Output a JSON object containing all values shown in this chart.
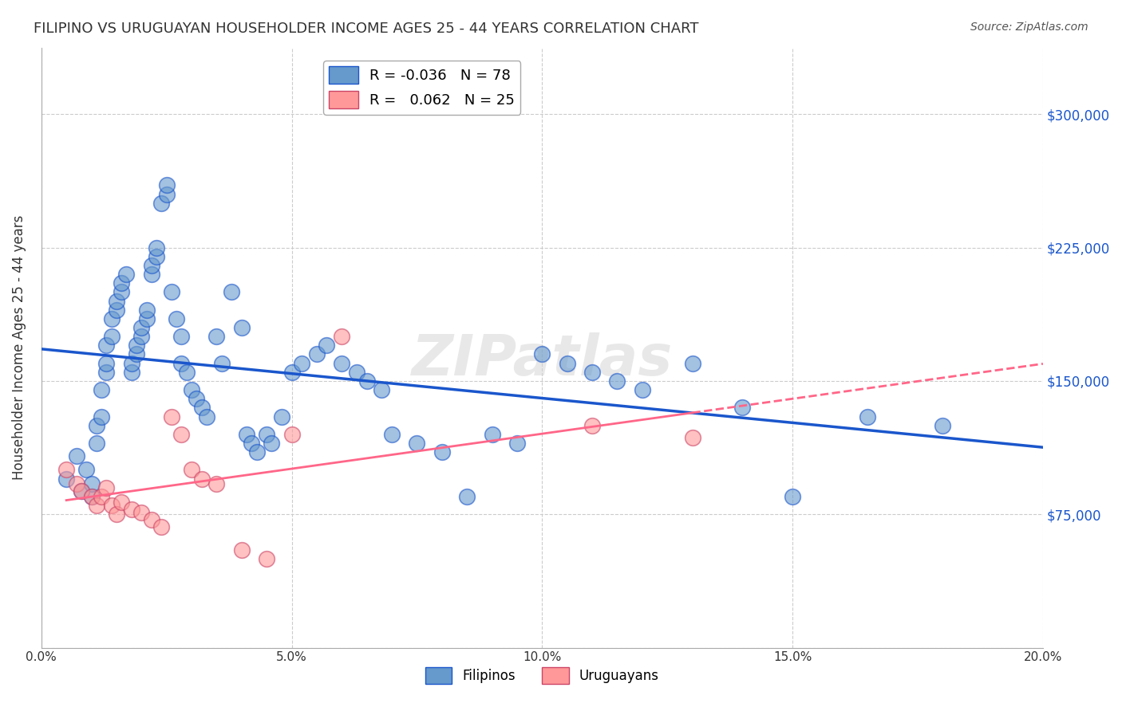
{
  "title": "FILIPINO VS URUGUAYAN HOUSEHOLDER INCOME AGES 25 - 44 YEARS CORRELATION CHART",
  "source": "Source: ZipAtlas.com",
  "xlabel": "",
  "ylabel": "Householder Income Ages 25 - 44 years",
  "xlim": [
    0.0,
    0.2
  ],
  "ylim": [
    0,
    337500
  ],
  "yticks": [
    0,
    75000,
    150000,
    225000,
    300000
  ],
  "background_color": "#ffffff",
  "watermark": "ZIPatlas",
  "filipino_color": "#6699cc",
  "uruguayan_color": "#ff9999",
  "trend_filipino_color": "#1a56cc",
  "trend_uruguayan_color": "#ff6688",
  "trend_uruguayan_edge": "#cc4466",
  "legend_R_filipino": "-0.036",
  "legend_N_filipino": "78",
  "legend_R_uruguayan": "0.062",
  "legend_N_uruguayan": "25",
  "filipino_x": [
    0.005,
    0.007,
    0.008,
    0.009,
    0.01,
    0.01,
    0.011,
    0.011,
    0.012,
    0.012,
    0.013,
    0.013,
    0.013,
    0.014,
    0.014,
    0.015,
    0.015,
    0.016,
    0.016,
    0.017,
    0.018,
    0.018,
    0.019,
    0.019,
    0.02,
    0.02,
    0.021,
    0.021,
    0.022,
    0.022,
    0.023,
    0.023,
    0.024,
    0.025,
    0.025,
    0.026,
    0.027,
    0.028,
    0.028,
    0.029,
    0.03,
    0.031,
    0.032,
    0.033,
    0.035,
    0.036,
    0.038,
    0.04,
    0.041,
    0.042,
    0.043,
    0.045,
    0.046,
    0.048,
    0.05,
    0.052,
    0.055,
    0.057,
    0.06,
    0.063,
    0.065,
    0.068,
    0.07,
    0.075,
    0.08,
    0.085,
    0.09,
    0.095,
    0.1,
    0.105,
    0.11,
    0.115,
    0.12,
    0.13,
    0.14,
    0.15,
    0.165,
    0.18
  ],
  "filipino_y": [
    95000,
    108000,
    88000,
    100000,
    85000,
    92000,
    115000,
    125000,
    130000,
    145000,
    155000,
    160000,
    170000,
    175000,
    185000,
    190000,
    195000,
    200000,
    205000,
    210000,
    155000,
    160000,
    165000,
    170000,
    175000,
    180000,
    185000,
    190000,
    210000,
    215000,
    220000,
    225000,
    250000,
    255000,
    260000,
    200000,
    185000,
    175000,
    160000,
    155000,
    145000,
    140000,
    135000,
    130000,
    175000,
    160000,
    200000,
    180000,
    120000,
    115000,
    110000,
    120000,
    115000,
    130000,
    155000,
    160000,
    165000,
    170000,
    160000,
    155000,
    150000,
    145000,
    120000,
    115000,
    110000,
    85000,
    120000,
    115000,
    165000,
    160000,
    155000,
    150000,
    145000,
    160000,
    135000,
    85000,
    130000,
    125000
  ],
  "uruguayan_x": [
    0.005,
    0.007,
    0.008,
    0.01,
    0.011,
    0.012,
    0.013,
    0.014,
    0.015,
    0.016,
    0.018,
    0.02,
    0.022,
    0.024,
    0.026,
    0.028,
    0.03,
    0.032,
    0.035,
    0.04,
    0.045,
    0.05,
    0.06,
    0.11,
    0.13
  ],
  "uruguayan_y": [
    100000,
    92000,
    88000,
    85000,
    80000,
    85000,
    90000,
    80000,
    75000,
    82000,
    78000,
    76000,
    72000,
    68000,
    130000,
    120000,
    100000,
    95000,
    92000,
    55000,
    50000,
    120000,
    175000,
    125000,
    118000
  ]
}
